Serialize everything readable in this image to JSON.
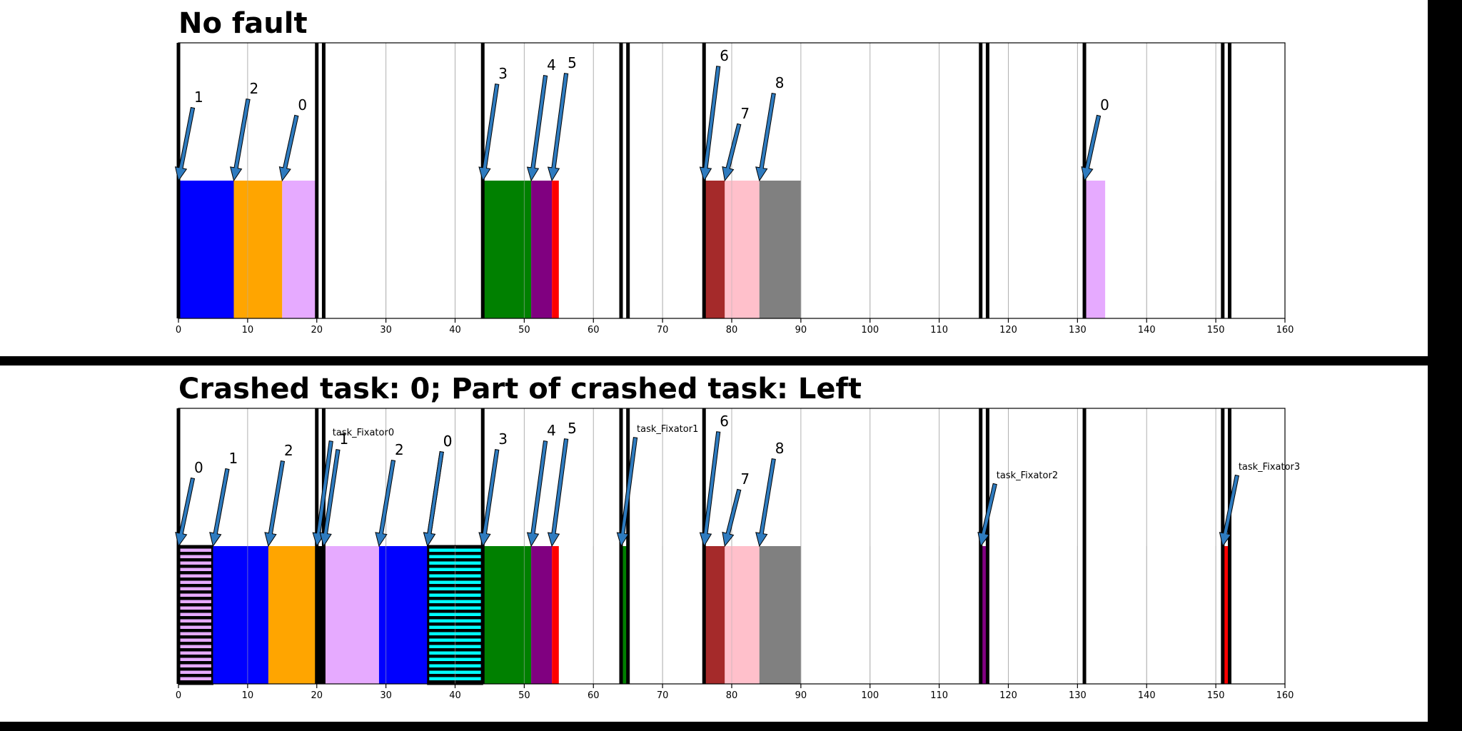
{
  "chart_data": [
    {
      "type": "bar",
      "title": "No fault",
      "xlim": [
        0,
        160
      ],
      "xticks": [
        0,
        10,
        20,
        30,
        40,
        50,
        60,
        70,
        80,
        90,
        100,
        110,
        120,
        130,
        140,
        150,
        160
      ],
      "grid": "vertical",
      "deadlines": [
        0,
        20,
        21,
        44,
        64,
        65,
        76,
        116,
        117,
        131,
        151,
        152
      ],
      "segments": [
        {
          "start": 0,
          "end": 8,
          "color": "#0000ff"
        },
        {
          "start": 8,
          "end": 15,
          "color": "#ffa500"
        },
        {
          "start": 15,
          "end": 20,
          "color": "#e6aaff"
        },
        {
          "start": 44,
          "end": 51,
          "color": "#008000"
        },
        {
          "start": 51,
          "end": 54,
          "color": "#800080"
        },
        {
          "start": 54,
          "end": 55,
          "color": "#ff0000"
        },
        {
          "start": 76,
          "end": 79,
          "color": "#a52a2a"
        },
        {
          "start": 79,
          "end": 84,
          "color": "#ffc0cb"
        },
        {
          "start": 84,
          "end": 90,
          "color": "#808080"
        },
        {
          "start": 131,
          "end": 134,
          "color": "#e6aaff"
        }
      ],
      "annotations": [
        {
          "label": "1",
          "x": 0,
          "small": false
        },
        {
          "label": "2",
          "x": 8,
          "small": false
        },
        {
          "label": "0",
          "x": 15,
          "small": false
        },
        {
          "label": "3",
          "x": 44,
          "small": false
        },
        {
          "label": "4",
          "x": 51,
          "small": false
        },
        {
          "label": "5",
          "x": 54,
          "small": false
        },
        {
          "label": "6",
          "x": 76,
          "small": false
        },
        {
          "label": "7",
          "x": 79,
          "small": false
        },
        {
          "label": "8",
          "x": 84,
          "small": false
        },
        {
          "label": "0",
          "x": 131,
          "small": false
        }
      ]
    },
    {
      "type": "bar",
      "title": "Crashed task: 0; Part of crashed task: Left",
      "xlim": [
        0,
        160
      ],
      "xticks": [
        0,
        10,
        20,
        30,
        40,
        50,
        60,
        70,
        80,
        90,
        100,
        110,
        120,
        130,
        140,
        150,
        160
      ],
      "grid": "vertical",
      "deadlines": [
        0,
        20,
        21,
        44,
        64,
        65,
        76,
        116,
        117,
        131,
        151,
        152
      ],
      "segments": [
        {
          "start": 0,
          "end": 5,
          "color": "#e6aaff",
          "hatch": "horizontal"
        },
        {
          "start": 5,
          "end": 13,
          "color": "#0000ff"
        },
        {
          "start": 13,
          "end": 20,
          "color": "#ffa500"
        },
        {
          "start": 20,
          "end": 21,
          "color": "#000000"
        },
        {
          "start": 21,
          "end": 29,
          "color": "#e6aaff"
        },
        {
          "start": 29,
          "end": 36,
          "color": "#0000ff"
        },
        {
          "start": 36,
          "end": 44,
          "color": "#00ffff",
          "hatch": "horizontal"
        },
        {
          "start": 44,
          "end": 51,
          "color": "#008000"
        },
        {
          "start": 51,
          "end": 54,
          "color": "#800080"
        },
        {
          "start": 54,
          "end": 55,
          "color": "#ff0000"
        },
        {
          "start": 64,
          "end": 65,
          "color": "#008000"
        },
        {
          "start": 76,
          "end": 79,
          "color": "#a52a2a"
        },
        {
          "start": 79,
          "end": 84,
          "color": "#ffc0cb"
        },
        {
          "start": 84,
          "end": 90,
          "color": "#808080"
        },
        {
          "start": 116,
          "end": 117,
          "color": "#800080"
        },
        {
          "start": 151,
          "end": 152,
          "color": "#ff0000"
        }
      ],
      "annotations": [
        {
          "label": "0",
          "x": 0,
          "small": false
        },
        {
          "label": "1",
          "x": 5,
          "small": false
        },
        {
          "label": "2",
          "x": 13,
          "small": false
        },
        {
          "label": "task_Fixator0",
          "x": 20,
          "small": true
        },
        {
          "label": "1",
          "x": 21,
          "small": false
        },
        {
          "label": "2",
          "x": 29,
          "small": false
        },
        {
          "label": "0",
          "x": 36,
          "small": false
        },
        {
          "label": "0",
          "x": 36,
          "small": false
        },
        {
          "label": "3",
          "x": 44,
          "small": false
        },
        {
          "label": "4",
          "x": 51,
          "small": false
        },
        {
          "label": "5",
          "x": 54,
          "small": false
        },
        {
          "label": "task_Fixator1",
          "x": 64,
          "small": true
        },
        {
          "label": "6",
          "x": 76,
          "small": false
        },
        {
          "label": "7",
          "x": 79,
          "small": false
        },
        {
          "label": "8",
          "x": 84,
          "small": false
        },
        {
          "label": "task_Fixator2",
          "x": 116,
          "small": true
        },
        {
          "label": "task_Fixator3",
          "x": 151,
          "small": true
        }
      ]
    }
  ]
}
